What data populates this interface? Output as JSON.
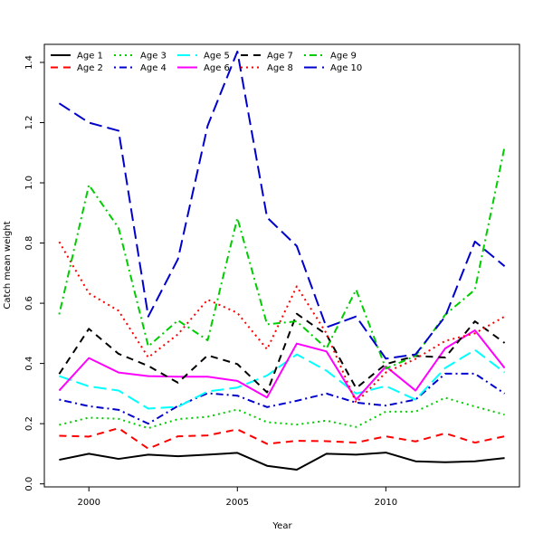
{
  "chart_data": {
    "type": "line",
    "title": "",
    "xlabel": "Year",
    "ylabel": "Catch mean weight",
    "xlim": [
      1998.5,
      2014.5
    ],
    "ylim": [
      -0.01,
      1.46
    ],
    "xticks": [
      2000,
      2005,
      2010
    ],
    "yticks": [
      0.0,
      0.2,
      0.4,
      0.6,
      0.8,
      1.0,
      1.2,
      1.4
    ],
    "ytick_labels": [
      "0.0",
      "0.2",
      "0.4",
      "0.6",
      "0.8",
      "1.0",
      "1.2",
      "1.4"
    ],
    "legend_position": "top-left",
    "x": [
      1999,
      2000,
      2001,
      2002,
      2003,
      2004,
      2005,
      2006,
      2007,
      2008,
      2009,
      2010,
      2011,
      2012,
      2013,
      2014
    ],
    "series": [
      {
        "name": "Age 1",
        "color": "#000000",
        "dash": "solid",
        "values": [
          0.08,
          0.1,
          0.083,
          0.097,
          0.092,
          0.097,
          0.103,
          0.06,
          0.047,
          0.1,
          0.097,
          0.104,
          0.075,
          0.072,
          0.075,
          0.086
        ]
      },
      {
        "name": "Age 2",
        "color": "#ff0000",
        "dash": "dashed",
        "values": [
          0.16,
          0.157,
          0.185,
          0.117,
          0.158,
          0.161,
          0.181,
          0.133,
          0.143,
          0.142,
          0.137,
          0.158,
          0.141,
          0.168,
          0.137,
          0.158
        ]
      },
      {
        "name": "Age 3",
        "color": "#00cd00",
        "dash": "dotted",
        "values": [
          0.196,
          0.22,
          0.216,
          0.185,
          0.215,
          0.223,
          0.247,
          0.205,
          0.197,
          0.21,
          0.189,
          0.24,
          0.24,
          0.286,
          0.257,
          0.23
        ]
      },
      {
        "name": "Age 4",
        "color": "#0000cd",
        "dash": "dotdash",
        "values": [
          0.28,
          0.258,
          0.246,
          0.2,
          0.259,
          0.301,
          0.293,
          0.255,
          0.276,
          0.3,
          0.27,
          0.26,
          0.28,
          0.366,
          0.366,
          0.3
        ]
      },
      {
        "name": "Age 5",
        "color": "#00ffff",
        "dash": "longdash",
        "values": [
          0.358,
          0.324,
          0.31,
          0.25,
          0.256,
          0.307,
          0.32,
          0.36,
          0.43,
          0.376,
          0.3,
          0.325,
          0.28,
          0.385,
          0.445,
          0.37
        ]
      },
      {
        "name": "Age 6",
        "color": "#ff00ff",
        "dash": "solid",
        "values": [
          0.31,
          0.418,
          0.37,
          0.358,
          0.356,
          0.356,
          0.342,
          0.287,
          0.466,
          0.44,
          0.28,
          0.39,
          0.31,
          0.45,
          0.51,
          0.385
        ]
      },
      {
        "name": "Age 7",
        "color": "#000000",
        "dash": "dashed",
        "values": [
          0.365,
          0.515,
          0.432,
          0.392,
          0.336,
          0.427,
          0.398,
          0.304,
          0.565,
          0.496,
          0.318,
          0.398,
          0.425,
          0.42,
          0.54,
          0.468
        ]
      },
      {
        "name": "Age 8",
        "color": "#ff0000",
        "dash": "dotted",
        "values": [
          0.804,
          0.633,
          0.575,
          0.42,
          0.497,
          0.612,
          0.568,
          0.447,
          0.656,
          0.5,
          0.27,
          0.37,
          0.415,
          0.475,
          0.5,
          0.556
        ]
      },
      {
        "name": "Age 9",
        "color": "#00cd00",
        "dash": "dotdash",
        "values": [
          0.563,
          0.993,
          0.85,
          0.457,
          0.543,
          0.477,
          0.883,
          0.53,
          0.54,
          0.45,
          0.645,
          0.383,
          0.425,
          0.562,
          0.645,
          1.12
        ]
      },
      {
        "name": "Age 10",
        "color": "#0000cd",
        "dash": "longdash",
        "values": [
          1.264,
          1.2,
          1.173,
          0.556,
          0.747,
          1.19,
          1.436,
          0.885,
          0.79,
          0.52,
          0.556,
          0.416,
          0.43,
          0.556,
          0.805,
          0.723
        ]
      }
    ]
  }
}
